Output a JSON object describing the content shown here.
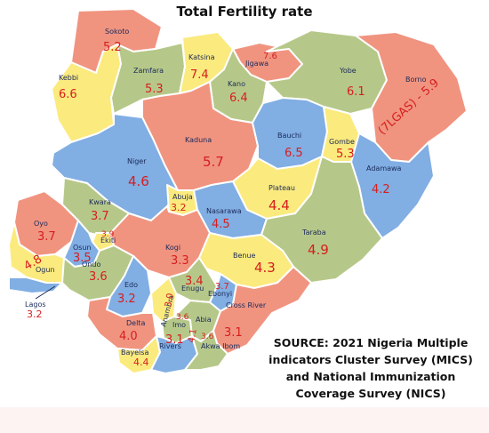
{
  "title": "Total Fertility rate",
  "source_lines": [
    "SOURCE: 2021 Nigeria Multiple",
    "indicators Cluster Survey (MICS)",
    "and National Immunization",
    "Coverage Survey (NICS)"
  ],
  "colors": {
    "orange": "#f09480",
    "green": "#b6c889",
    "yellow": "#fbea7d",
    "blue": "#81aee3",
    "value_text": "#d61e1e",
    "name_text": "#1b2a5a"
  },
  "states": {
    "sokoto": {
      "name": "Sokoto",
      "value": "5.2"
    },
    "kebbi": {
      "name": "Kebbi",
      "value": "6.6"
    },
    "zamfara": {
      "name": "Zamfara",
      "value": "5.3"
    },
    "katsina": {
      "name": "Katsina",
      "value": "7.4"
    },
    "jigawa": {
      "name": "Jigawa",
      "value": "7.6"
    },
    "kano": {
      "name": "Kano",
      "value": "6.4"
    },
    "yobe": {
      "name": "Yobe",
      "value": "6.1"
    },
    "borno": {
      "name": "Borno",
      "value": "(7LGAS) - 5.9"
    },
    "kaduna": {
      "name": "Kaduna",
      "value": "5.7"
    },
    "bauchi": {
      "name": "Bauchi",
      "value": "6.5"
    },
    "gombe": {
      "name": "Gombe",
      "value": "5.3"
    },
    "niger": {
      "name": "Niger",
      "value": "4.6"
    },
    "adamawa": {
      "name": "Adamawa",
      "value": "4.2"
    },
    "abuja": {
      "name": "Abuja",
      "value": "3.2"
    },
    "plateau": {
      "name": "Plateau",
      "value": "4.4"
    },
    "kwara": {
      "name": "Kwara",
      "value": "3.7"
    },
    "nasarawa": {
      "name": "Nasarawa",
      "value": "4.5"
    },
    "oyo": {
      "name": "Oyo",
      "value": "3.7"
    },
    "ekiti": {
      "name": "Ekiti",
      "value": "3.9"
    },
    "osun": {
      "name": "Osun",
      "value": "3.5"
    },
    "kogi": {
      "name": "Kogi",
      "value": "3.3"
    },
    "taraba": {
      "name": "Taraba",
      "value": "4.9"
    },
    "ogun": {
      "name": "Ogun",
      "value": "4.8"
    },
    "ondo": {
      "name": "Ondo",
      "value": "3.6"
    },
    "benue": {
      "name": "Benue",
      "value": "4.3"
    },
    "lagos": {
      "name": "Lagos",
      "value": "3.2"
    },
    "edo": {
      "name": "Edo",
      "value": "3.2"
    },
    "enugu": {
      "name": "Enugu",
      "value": "3.4"
    },
    "ebonyi": {
      "name": "Ebonyi",
      "value": "3.7"
    },
    "anambra": {
      "name": "Anambra",
      "value": "3.0"
    },
    "delta": {
      "name": "Delta",
      "value": "4.0"
    },
    "imo": {
      "name": "Imo",
      "value": "3.6"
    },
    "abia": {
      "name": "Abia",
      "value": "4.1"
    },
    "cross_river": {
      "name": "Cross River",
      "value": "3.1"
    },
    "bayelsa": {
      "name": "Bayelsa",
      "value": "4.4"
    },
    "rivers": {
      "name": "Rivers",
      "value": "3.1"
    },
    "akwa_ibom": {
      "name": "Akwa Ibom",
      "value": "3.6"
    }
  }
}
